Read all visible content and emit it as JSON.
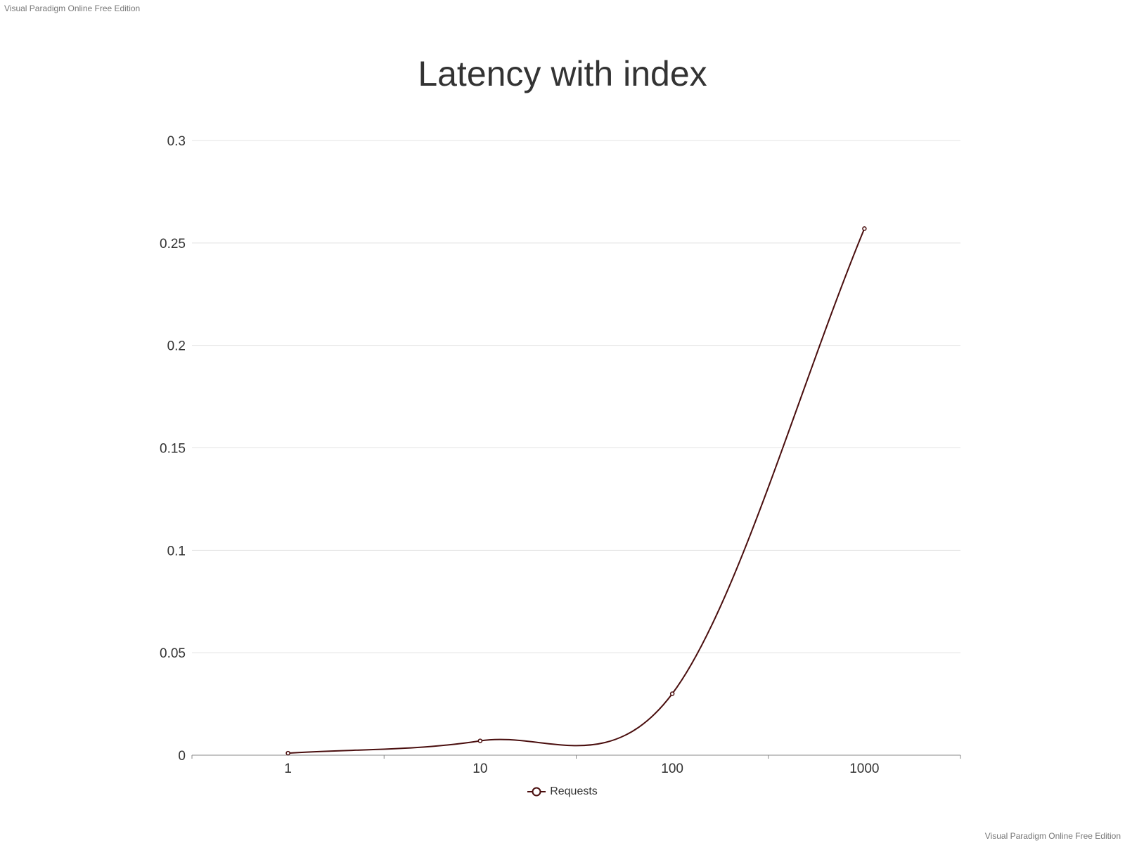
{
  "watermark": {
    "top": "Visual Paradigm Online Free Edition",
    "bottom": "Visual Paradigm Online Free Edition"
  },
  "colors": {
    "series": "#4a0e0e",
    "grid": "#e3e3e3",
    "axis": "#888888",
    "text": "#333333"
  },
  "chart_data": {
    "type": "line",
    "title": "Latency with index",
    "xlabel": "",
    "ylabel": "",
    "x_scale": "log",
    "categories": [
      "1",
      "10",
      "100",
      "1000"
    ],
    "series": [
      {
        "name": "Requests",
        "values": [
          0.001,
          0.007,
          0.03,
          0.257
        ]
      }
    ],
    "yticks": [
      "0",
      "0.05",
      "0.1",
      "0.15",
      "0.2",
      "0.25",
      "0.3"
    ],
    "ylim": [
      0,
      0.3
    ],
    "grid": true,
    "legend": "bottom-center",
    "smooth": true
  }
}
